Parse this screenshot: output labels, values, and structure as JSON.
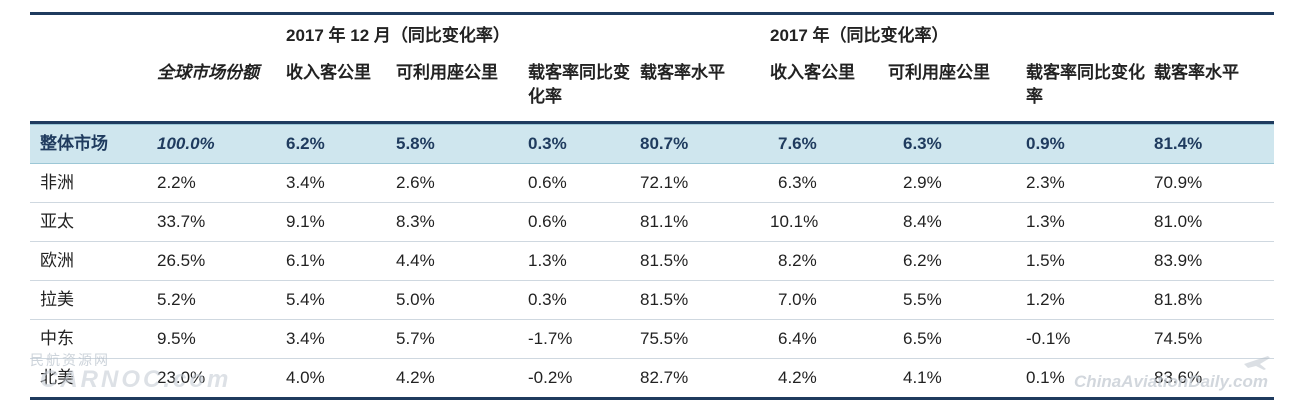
{
  "header": {
    "group_dec": "2017 年 12 月（同比变化率）",
    "group_year": "2017 年（同比变化率）",
    "share_label": "全球市场份额",
    "rpk": "收入客公里",
    "ask": "可利用座公里",
    "plf_change_dec": "载客率同比变化率",
    "plf_level": "载客率水平",
    "plf_change_year": "载客率同比变化率"
  },
  "total": {
    "region": "整体市场",
    "share": "100.0%",
    "dec_rpk": "6.2%",
    "dec_ask": "5.8%",
    "dec_plf_chg": "0.3%",
    "dec_plf": "80.7%",
    "yr_rpk": "7.6%",
    "yr_ask": "6.3%",
    "yr_plf_chg": "0.9%",
    "yr_plf": "81.4%"
  },
  "rows": [
    {
      "region": "非洲",
      "share": "2.2%",
      "dec_rpk": "3.4%",
      "dec_ask": "2.6%",
      "dec_plf_chg": "0.6%",
      "dec_plf": "72.1%",
      "yr_rpk": "6.3%",
      "yr_ask": "2.9%",
      "yr_plf_chg": "2.3%",
      "yr_plf": "70.9%"
    },
    {
      "region": "亚太",
      "share": "33.7%",
      "dec_rpk": "9.1%",
      "dec_ask": "8.3%",
      "dec_plf_chg": "0.6%",
      "dec_plf": "81.1%",
      "yr_rpk": "10.1%",
      "yr_ask": "8.4%",
      "yr_plf_chg": "1.3%",
      "yr_plf": "81.0%"
    },
    {
      "region": "欧洲",
      "share": "26.5%",
      "dec_rpk": "6.1%",
      "dec_ask": "4.4%",
      "dec_plf_chg": "1.3%",
      "dec_plf": "81.5%",
      "yr_rpk": "8.2%",
      "yr_ask": "6.2%",
      "yr_plf_chg": "1.5%",
      "yr_plf": "83.9%"
    },
    {
      "region": "拉美",
      "share": "5.2%",
      "dec_rpk": "5.4%",
      "dec_ask": "5.0%",
      "dec_plf_chg": "0.3%",
      "dec_plf": "81.5%",
      "yr_rpk": "7.0%",
      "yr_ask": "5.5%",
      "yr_plf_chg": "1.2%",
      "yr_plf": "81.8%"
    },
    {
      "region": "中东",
      "share": "9.5%",
      "dec_rpk": "3.4%",
      "dec_ask": "5.7%",
      "dec_plf_chg": "-1.7%",
      "dec_plf": "75.5%",
      "yr_rpk": "6.4%",
      "yr_ask": "6.5%",
      "yr_plf_chg": "-0.1%",
      "yr_plf": "74.5%"
    },
    {
      "region": "北美",
      "share": "23.0%",
      "dec_rpk": "4.0%",
      "dec_ask": "4.2%",
      "dec_plf_chg": "-0.2%",
      "dec_plf": "82.7%",
      "yr_rpk": "4.2%",
      "yr_ask": "4.1%",
      "yr_plf_chg": "0.1%",
      "yr_plf": "83.6%"
    }
  ],
  "watermarks": {
    "left_top": "民航资源网",
    "left_bottom": "CARNOC.com",
    "right": "ChinaAviationDaily.com"
  },
  "colors": {
    "rule": "#1f3b5e",
    "total_bg": "#cfe6ee",
    "header_text": "#1f3b5e"
  },
  "icons": {
    "watermark_plane": "plane-icon"
  }
}
